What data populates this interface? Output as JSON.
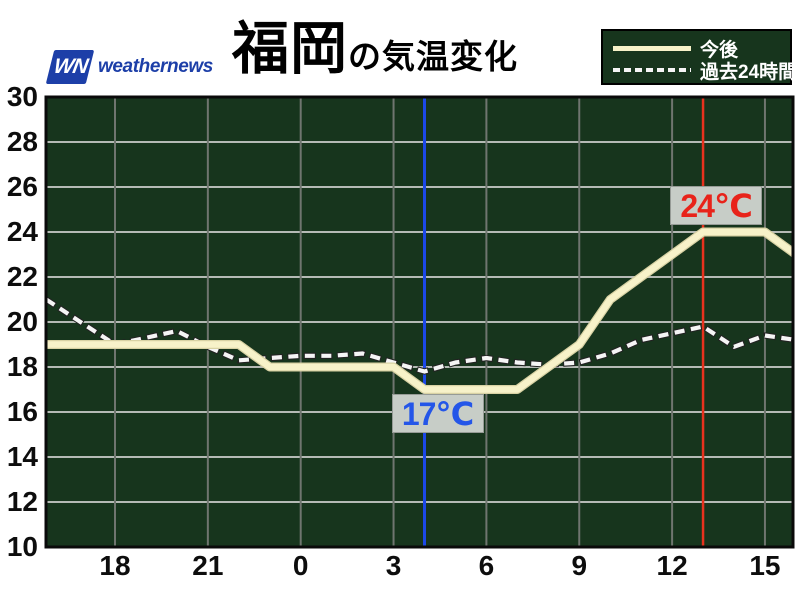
{
  "brand": {
    "mark_text": "WN",
    "name": "weathernews"
  },
  "title": {
    "city": "福岡",
    "suffix": "の気温変化"
  },
  "legend": {
    "forecast_label": "今後",
    "past_label": "過去24時間"
  },
  "chart_data": {
    "type": "line",
    "title": "福岡の気温変化",
    "x_axis": {
      "unit": "hour of day",
      "tick_labels": [
        "18",
        "21",
        "0",
        "3",
        "6",
        "9",
        "12",
        "15"
      ],
      "tick_hours_from_18": [
        0,
        3,
        6,
        9,
        12,
        15,
        18,
        21
      ],
      "visible_range_hours_from_18": [
        -2.23,
        21.9
      ]
    },
    "y_axis": {
      "unit": "°C",
      "min": 10,
      "max": 30,
      "tick_step": 2,
      "tick_labels": [
        "30",
        "28",
        "26",
        "24",
        "22",
        "20",
        "18",
        "16",
        "14",
        "12",
        "10"
      ]
    },
    "hour_labels": [
      "16",
      "17",
      "18",
      "19",
      "20",
      "21",
      "22",
      "23",
      "0",
      "1",
      "2",
      "3",
      "4",
      "5",
      "6",
      "7",
      "8",
      "9",
      "10",
      "11",
      "12",
      "13",
      "14",
      "15",
      "16"
    ],
    "series": [
      {
        "name": "今後",
        "style": "solid",
        "color": "#f7f2c9",
        "values": [
          19,
          19,
          19,
          19,
          19,
          19,
          19,
          18,
          18,
          18,
          18,
          18,
          17,
          17,
          17,
          17,
          18,
          19,
          21,
          22,
          23,
          24,
          24,
          24,
          23
        ]
      },
      {
        "name": "過去24時間",
        "style": "dashed",
        "color": "#f5f5f5",
        "values": [
          20.8,
          19.9,
          19.0,
          19.3,
          19.6,
          18.9,
          18.3,
          18.4,
          18.5,
          18.5,
          18.6,
          18.2,
          17.8,
          18.2,
          18.4,
          18.2,
          18.1,
          18.2,
          18.6,
          19.2,
          19.5,
          19.8,
          18.9,
          19.4,
          19.2
        ]
      }
    ],
    "markers": [
      {
        "label": "24℃",
        "temp": 24,
        "hour_label": "13",
        "hours_from_18": 19,
        "line_color": "#e8321e",
        "text_color": "#e8231a",
        "placement": "above"
      },
      {
        "label": "17℃",
        "temp": 17,
        "hour_label": "4",
        "hours_from_18": 10,
        "line_color": "#1c48e8",
        "text_color": "#2456e8",
        "placement": "below"
      }
    ],
    "grid": true,
    "legend_position": "top-right",
    "colors": {
      "chart_bg": "#17351d",
      "h_grid": "#b5bab5",
      "v_grid": "#6f756f",
      "border": "#0a0a0a",
      "annotation_bg": "#c7cdc7",
      "forecast_outline": "#d8d2a4",
      "past_outline": "#222222"
    }
  }
}
